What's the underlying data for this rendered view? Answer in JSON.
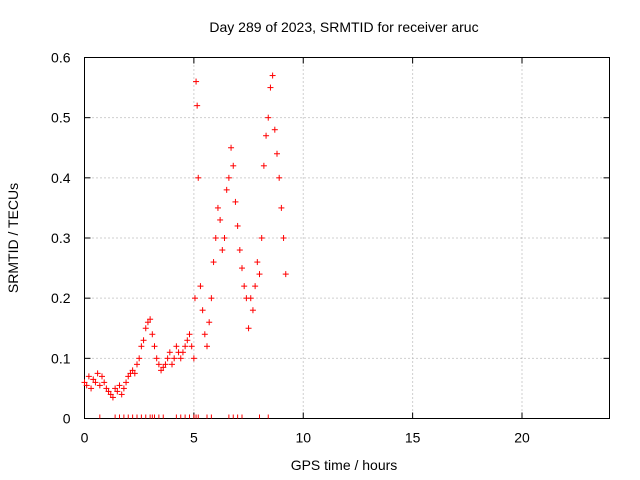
{
  "chart_data": {
    "type": "scatter",
    "title": "Day 289 of 2023, SRMTID for receiver aruc",
    "xlabel": "GPS time / hours",
    "ylabel": "SRMTID / TECUs",
    "xlim": [
      0,
      24
    ],
    "ylim": [
      0,
      0.6
    ],
    "x_ticks": [
      0,
      5,
      10,
      15,
      20
    ],
    "x_tick_labels": [
      "0",
      "5",
      "10",
      "15",
      "20"
    ],
    "y_ticks": [
      0,
      0.1,
      0.2,
      0.3,
      0.4,
      0.5,
      0.6
    ],
    "y_tick_labels": [
      "0",
      "0.1",
      "0.2",
      "0.3",
      "0.4",
      "0.5",
      "0.6"
    ],
    "grid": true,
    "marker": "+",
    "marker_color": "#ff0000",
    "series": [
      {
        "name": "SRMTID",
        "x": [
          0.0,
          0.1,
          0.2,
          0.3,
          0.4,
          0.5,
          0.6,
          0.7,
          0.8,
          0.9,
          1.0,
          1.1,
          1.2,
          1.3,
          1.4,
          1.5,
          1.6,
          1.7,
          1.8,
          1.9,
          2.0,
          2.1,
          2.2,
          2.3,
          2.4,
          2.5,
          2.6,
          2.7,
          2.8,
          2.9,
          3.0,
          3.1,
          3.2,
          3.3,
          3.4,
          3.5,
          3.6,
          3.7,
          3.8,
          3.9,
          4.0,
          4.1,
          4.2,
          4.3,
          4.4,
          4.5,
          4.6,
          4.7,
          4.8,
          4.9,
          5.0,
          5.05,
          5.1,
          5.15,
          5.2,
          5.3,
          5.4,
          5.5,
          5.6,
          5.7,
          5.8,
          5.9,
          6.0,
          6.1,
          6.2,
          6.3,
          6.4,
          6.5,
          6.6,
          6.7,
          6.8,
          6.9,
          7.0,
          7.1,
          7.2,
          7.3,
          7.4,
          7.5,
          7.6,
          7.7,
          7.8,
          7.9,
          8.0,
          8.1,
          8.2,
          8.3,
          8.4,
          8.5,
          8.6,
          8.7,
          8.8,
          8.9,
          9.0,
          9.1,
          9.2
        ],
        "y": [
          0.06,
          0.055,
          0.07,
          0.05,
          0.065,
          0.06,
          0.075,
          0.055,
          0.07,
          0.06,
          0.05,
          0.045,
          0.04,
          0.035,
          0.05,
          0.045,
          0.055,
          0.04,
          0.05,
          0.06,
          0.07,
          0.075,
          0.08,
          0.075,
          0.09,
          0.1,
          0.12,
          0.13,
          0.15,
          0.16,
          0.165,
          0.14,
          0.12,
          0.1,
          0.09,
          0.08,
          0.085,
          0.09,
          0.1,
          0.11,
          0.09,
          0.1,
          0.12,
          0.11,
          0.1,
          0.11,
          0.12,
          0.13,
          0.14,
          0.12,
          0.1,
          0.2,
          0.56,
          0.52,
          0.4,
          0.22,
          0.18,
          0.14,
          0.12,
          0.16,
          0.2,
          0.26,
          0.3,
          0.35,
          0.33,
          0.28,
          0.3,
          0.38,
          0.4,
          0.45,
          0.42,
          0.36,
          0.32,
          0.28,
          0.25,
          0.22,
          0.2,
          0.15,
          0.2,
          0.18,
          0.22,
          0.26,
          0.24,
          0.3,
          0.42,
          0.47,
          0.5,
          0.55,
          0.57,
          0.48,
          0.44,
          0.4,
          0.35,
          0.3,
          0.24
        ],
        "zero_flag_x": [
          0.7,
          1.4,
          1.6,
          1.8,
          2.0,
          2.2,
          2.4,
          2.6,
          2.8,
          3.0,
          3.1,
          3.2,
          3.4,
          3.6,
          4.2,
          4.4,
          4.6,
          4.8,
          5.0,
          5.1,
          5.2,
          5.6,
          5.8,
          6.6,
          6.8,
          7.0,
          7.2,
          8.0,
          8.4
        ]
      }
    ]
  }
}
